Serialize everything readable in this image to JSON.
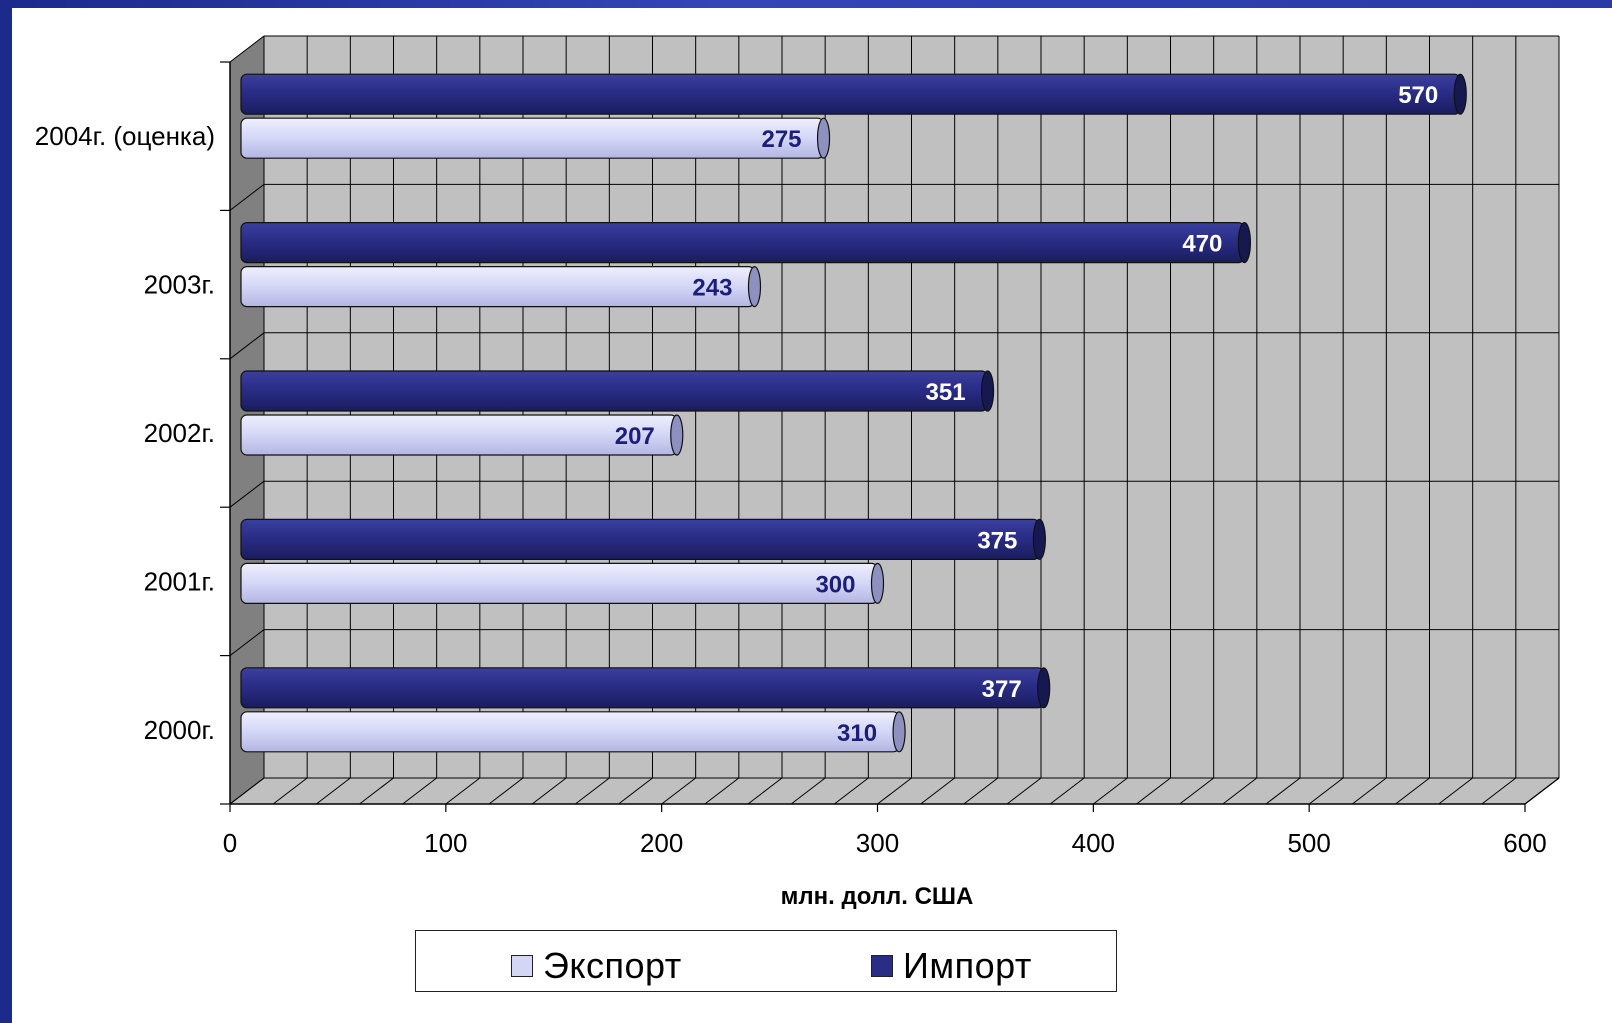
{
  "chart_data": {
    "type": "bar",
    "orientation": "horizontal",
    "categories": [
      "2004г. (оценка)",
      "2003г.",
      "2002г.",
      "2001г.",
      "2000г."
    ],
    "series": [
      {
        "name": "Импорт",
        "color": "#2a2d86",
        "values": [
          570,
          470,
          351,
          375,
          377
        ]
      },
      {
        "name": "Экспорт",
        "color": "#d4d6f6",
        "values": [
          275,
          243,
          207,
          300,
          310
        ]
      }
    ],
    "xlabel": "млн. долл. США",
    "xlim": [
      0,
      600
    ],
    "xticks": [
      "0",
      "100",
      "200",
      "300",
      "400",
      "500",
      "600"
    ],
    "grid": true,
    "legend": "bottom-center"
  },
  "legend": {
    "items": [
      {
        "label": "Экспорт",
        "color": "#d4d6f6"
      },
      {
        "label": "Импорт",
        "color": "#2a2d86"
      }
    ]
  }
}
